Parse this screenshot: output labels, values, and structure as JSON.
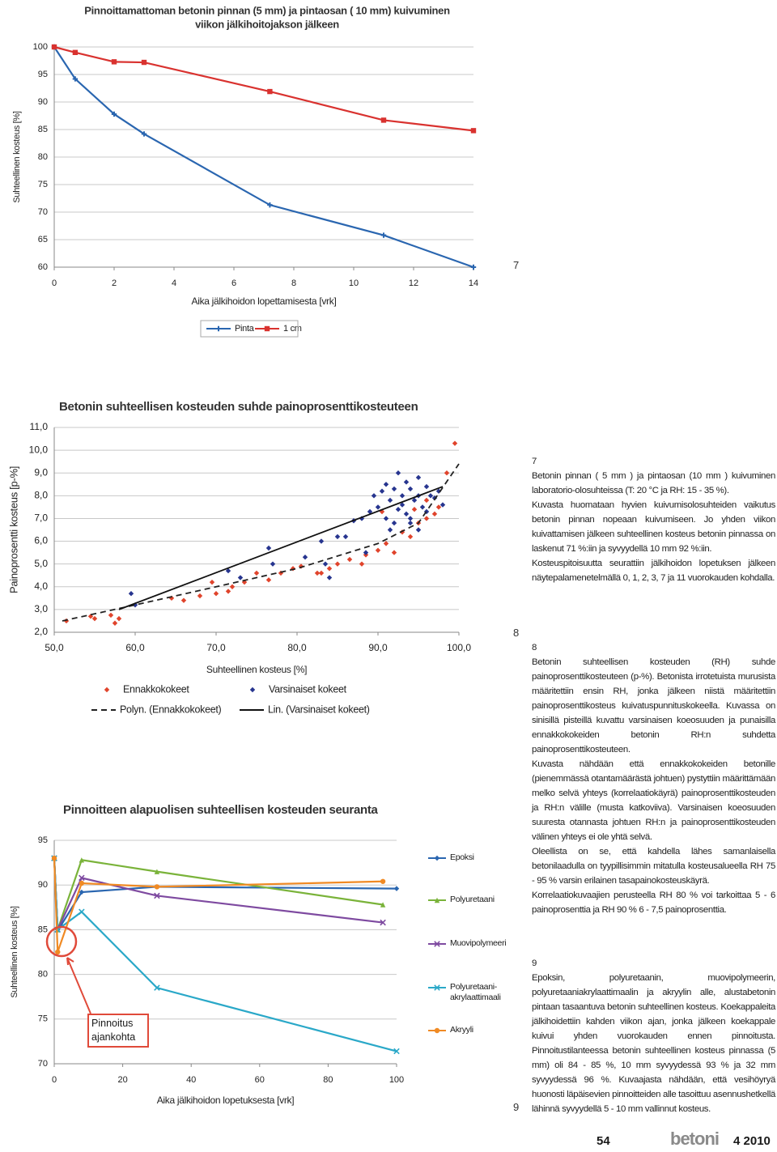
{
  "chart_data": [
    {
      "type": "line",
      "title": [
        "Pinnoittamattoman betonin pinnan (5 mm) ja pintaosan ( 10 mm) kuivuminen",
        "viikon jälkihoitojakson jälkeen"
      ],
      "x_label": "Aika jälkihoidon lopettamisesta [vrk]",
      "y_label": "Suhteellinen kosteus [%]",
      "xlim": [
        0,
        14
      ],
      "xticks": [
        0,
        2,
        4,
        6,
        8,
        10,
        12,
        14
      ],
      "ylim": [
        60,
        100
      ],
      "yticks": [
        60,
        65,
        70,
        75,
        80,
        85,
        90,
        95,
        100
      ],
      "grid": true,
      "series": [
        {
          "name": "Pinta",
          "color": "#2a66b0",
          "marker": "plus",
          "x": [
            0,
            0.7,
            2,
            3,
            7.2,
            11,
            14
          ],
          "values": [
            100,
            94.2,
            87.8,
            84.2,
            71.3,
            65.8,
            60
          ]
        },
        {
          "name": "1 cm",
          "color": "#d9322f",
          "marker": "square",
          "x": [
            0,
            0.7,
            2,
            3,
            7.2,
            11,
            14
          ],
          "values": [
            100,
            99,
            97.3,
            97.2,
            91.9,
            86.7,
            84.8
          ]
        }
      ]
    },
    {
      "type": "scatter",
      "title": "Betonin suhteellisen kosteuden suhde painoprosenttikosteuteen",
      "x_label": "Suhteellinen kosteus [%]",
      "y_label": "Painoprosentti kosteus [p-%]",
      "xlim": [
        50,
        100
      ],
      "xticks": [
        {
          "value": 50,
          "label": "50,0"
        },
        {
          "value": 60,
          "label": "60,0"
        },
        {
          "value": 70,
          "label": "70,0"
        },
        {
          "value": 80,
          "label": "80,0"
        },
        {
          "value": 90,
          "label": "90,0"
        },
        {
          "value": 100,
          "label": "100,0"
        }
      ],
      "ylim": [
        2,
        11
      ],
      "yticks": [
        {
          "value": 2,
          "label": "2,0"
        },
        {
          "value": 3,
          "label": "3,0"
        },
        {
          "value": 4,
          "label": "4,0"
        },
        {
          "value": 5,
          "label": "5,0"
        },
        {
          "value": 6,
          "label": "6,0"
        },
        {
          "value": 7,
          "label": "7,0"
        },
        {
          "value": 8,
          "label": "8,0"
        },
        {
          "value": 9,
          "label": "9,0"
        },
        {
          "value": 10,
          "label": "10,0"
        },
        {
          "value": 11,
          "label": "11,0"
        }
      ],
      "grid": true,
      "series": [
        {
          "name": "Ennakkokokeet",
          "color": "#e0442c",
          "marker": "diamond",
          "x": [
            51.5,
            54.5,
            55,
            57,
            57.5,
            58,
            64.5,
            66,
            68,
            69.5,
            70,
            71.5,
            72,
            73.5,
            75,
            76.5,
            78,
            79.5,
            80.5,
            82.5,
            83,
            84,
            85,
            86.5,
            88,
            88.5,
            90,
            91,
            92,
            93,
            94,
            95,
            96,
            97,
            97.5,
            98.5,
            99.5,
            90.5,
            94.5,
            96
          ],
          "values": [
            2.5,
            2.7,
            2.6,
            2.75,
            2.4,
            2.6,
            3.5,
            3.4,
            3.6,
            4.2,
            3.7,
            3.8,
            4.0,
            4.2,
            4.6,
            4.3,
            4.6,
            4.8,
            4.9,
            4.6,
            4.6,
            4.8,
            5.0,
            5.2,
            5.0,
            5.4,
            5.6,
            5.9,
            5.5,
            6.4,
            6.2,
            6.8,
            7.0,
            7.2,
            7.5,
            9.0,
            10.3,
            7.3,
            7.4,
            7.8
          ]
        },
        {
          "name": "Varsinaiset kokeet",
          "color": "#27358f",
          "marker": "diamond",
          "x": [
            59.5,
            60,
            71.5,
            73,
            76.5,
            77,
            81,
            83,
            83.5,
            84,
            85,
            86,
            87,
            88,
            88.5,
            89,
            89.5,
            90,
            90.5,
            91,
            91,
            91.5,
            92,
            92,
            92.5,
            93,
            93,
            93.5,
            93.5,
            94,
            94,
            94.5,
            95,
            95,
            95.5,
            96,
            96,
            96.5,
            97,
            97.5,
            98,
            92.5,
            91.5,
            94,
            95
          ],
          "values": [
            3.7,
            3.2,
            4.7,
            4.4,
            5.7,
            5.0,
            5.3,
            6.0,
            5.0,
            4.4,
            6.2,
            6.2,
            6.9,
            7.0,
            5.5,
            7.3,
            8.0,
            7.5,
            8.2,
            7.0,
            8.5,
            7.8,
            8.3,
            6.8,
            9.0,
            7.6,
            8.0,
            8.6,
            7.2,
            8.3,
            7.0,
            7.8,
            8.8,
            8.0,
            7.5,
            8.4,
            7.3,
            8.0,
            7.9,
            8.2,
            7.6,
            7.4,
            6.5,
            6.8,
            6.5
          ]
        },
        {
          "name": "Polyn. (Ennakkokokeet)",
          "color": "#222222",
          "style": "dashed",
          "marker": "none",
          "x": [
            51,
            60,
            70,
            80,
            90,
            95,
            100
          ],
          "values": [
            2.5,
            3.2,
            4.0,
            4.8,
            5.9,
            6.8,
            9.4
          ]
        },
        {
          "name": "Lin. (Varsinaiset kokeet)",
          "color": "#111111",
          "style": "solid",
          "marker": "none",
          "x": [
            58,
            98
          ],
          "values": [
            3.0,
            8.4
          ]
        }
      ]
    },
    {
      "type": "line",
      "title": "Pinnoitteen alapuolisen suhteellisen kosteuden seuranta",
      "x_label": "Aika jälkihoidon lopetuksesta [vrk]",
      "y_label": "Suhteellinen kosteus [%]",
      "xlim": [
        0,
        100
      ],
      "xticks": [
        0,
        20,
        40,
        60,
        80,
        100
      ],
      "ylim": [
        70,
        95
      ],
      "yticks": [
        70,
        75,
        80,
        85,
        90,
        95
      ],
      "grid": true,
      "annotation": "Pinnoitus ajankohta",
      "series": [
        {
          "name": "Epoksi",
          "color": "#2a66b0",
          "marker": "diamond",
          "x": [
            0,
            1,
            2,
            8,
            30,
            100
          ],
          "values": [
            93,
            85,
            85.5,
            89.2,
            89.8,
            89.6
          ]
        },
        {
          "name": "Polyuretaani",
          "color": "#7ab33a",
          "marker": "triangle",
          "x": [
            0,
            1,
            8,
            30,
            96
          ],
          "values": [
            93,
            85,
            92.8,
            91.5,
            87.8
          ]
        },
        {
          "name": "Muovipolymeeri",
          "color": "#7e4aa0",
          "marker": "x",
          "x": [
            0,
            1,
            8,
            30,
            96
          ],
          "values": [
            93,
            85,
            90.8,
            88.8,
            85.8
          ]
        },
        {
          "name": "Polyuretaani-akrylaattimaali",
          "color": "#2aa8c8",
          "marker": "x",
          "x": [
            0,
            1,
            8,
            30,
            100
          ],
          "values": [
            93,
            85,
            87,
            78.5,
            71.4
          ]
        },
        {
          "name": "Akryyli",
          "color": "#f08a24",
          "marker": "circle",
          "x": [
            0,
            1,
            8,
            30,
            96
          ],
          "values": [
            93,
            82.5,
            90.2,
            89.8,
            90.4
          ]
        }
      ]
    }
  ],
  "figure_numbers": [
    "7",
    "8",
    "9"
  ],
  "captions": [
    {
      "number": "7",
      "paragraphs": [
        "Betonin pinnan ( 5 mm ) ja pintaosan (10 mm ) kuivuminen laboratorio-olosuhteissa (T: 20 °C ja RH: 15 - 35 %).",
        "Kuvasta huomataan hyvien kuivumisolosuhteiden vaikutus betonin pinnan nopeaan kuivumiseen. Jo yhden viikon kuivattamisen jälkeen suhteellinen kosteus betonin pinnassa on laskenut 71 %:iin ja syvyydellä 10 mm 92 %:iin.",
        "Kosteuspitoisuutta seurattiin jälkihoidon lopetuksen jälkeen näytepalamenetelmällä 0, 1, 2, 3, 7 ja 11 vuorokauden kohdalla."
      ]
    },
    {
      "number": "8",
      "paragraphs": [
        "Betonin suhteellisen kosteuden (RH) suhde painoprosenttikosteuteen (p-%). Betonista irrotetuista murusista määritettiin ensin RH, jonka jälkeen niistä määritettiin painoprosenttikosteus kuivatuspunnituskokeella. Kuvassa on sinisillä pisteillä kuvattu varsinaisen koeosuuden ja punaisilla ennakkokokeiden betonin RH:n suhdetta painoprosenttikosteuteen.",
        "Kuvasta nähdään että ennakkokokeiden betonille (pienemmässä otantamäärästä johtuen) pystyttiin määrittämään melko selvä yhteys (korrelaatiokäyrä) painoprosenttikosteuden ja RH:n välille (musta katkoviiva). Varsinaisen koeosuuden suuresta otannasta johtuen RH:n ja painoprosenttikosteuden välinen yhteys ei ole yhtä selvä.",
        "Oleellista on se, että kahdella lähes samanlaisella betonilaadulla on tyypillisimmin mitatulla kosteusalueella RH 75 - 95 % varsin erilainen tasapainokosteuskäyrä.",
        "Korrelaatiokuvaajien perusteella RH 80 % voi tarkoittaa 5 - 6 painoprosenttia ja RH 90 % 6 - 7,5 painoprosenttia."
      ]
    },
    {
      "number": "9",
      "paragraphs": [
        "Epoksin, polyuretaanin, muovipolymeerin, polyuretaaniakrylaattimaalin ja akryylin alle, alustabetonin pintaan tasaantuva betonin suhteellinen kosteus. Koekappaleita jälkihoidettiin kahden viikon ajan, jonka jälkeen koekappale kuivui yhden vuorokauden ennen pinnoitusta. Pinnoitustilanteessa betonin suhteellinen kosteus pinnassa (5 mm) oli 84 - 85 %, 10 mm syvyydessä 93 % ja 32 mm syvyydessä 96 %. Kuvaajasta nähdään, että vesihöyryä huonosti läpäisevien pinnoitteiden alle tasoittuu asennushetkellä lähinnä syvyydellä 5 - 10 mm vallinnut kosteus."
      ]
    }
  ],
  "footer": {
    "page": "54",
    "magazine": "betoni",
    "issue": "4 2010"
  }
}
